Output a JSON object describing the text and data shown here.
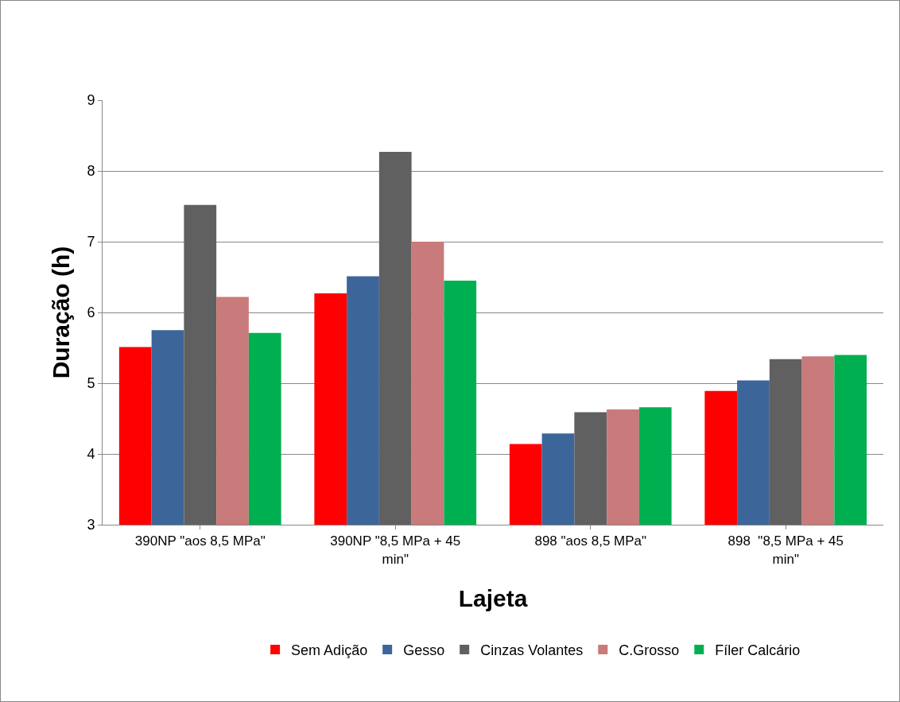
{
  "chart_data": {
    "type": "bar",
    "xlabel": "Lajeta",
    "ylabel": "Duração (h)",
    "categories": [
      "390NP \"aos 8,5 MPa\"",
      "390NP \"8,5 MPa + 45 min\"",
      "898 \"aos 8,5 MPa\"",
      "898  \"8,5 MPa + 45 min\""
    ],
    "series": [
      {
        "name": "Sem Adição",
        "color": "#ff0000",
        "values": [
          5.51,
          6.27,
          4.14,
          4.89
        ]
      },
      {
        "name": "Gesso",
        "color": "#3c6699",
        "values": [
          5.75,
          6.51,
          4.29,
          5.04
        ]
      },
      {
        "name": "Cinzas Volantes",
        "color": "#606060",
        "values": [
          7.52,
          8.27,
          4.59,
          5.34
        ]
      },
      {
        "name": "C.Grosso",
        "color": "#c97a7a",
        "values": [
          6.22,
          7.0,
          4.63,
          5.38
        ]
      },
      {
        "name": "Fíler Calcário",
        "color": "#00b050",
        "values": [
          5.71,
          6.45,
          4.66,
          5.4
        ]
      }
    ],
    "ylim": [
      3,
      9
    ],
    "yticks": [
      3,
      4,
      5,
      6,
      7,
      8,
      9
    ],
    "grid": "y",
    "legend": "bottom"
  }
}
